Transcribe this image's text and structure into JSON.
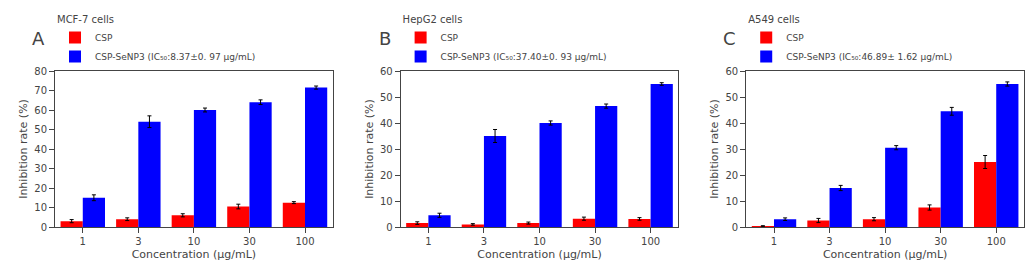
{
  "chart_data": [
    {
      "type": "bar",
      "title": "A",
      "annotations": [
        "MCF-7 cells"
      ],
      "xlabel": "Concentration (μg/mL)",
      "ylabel": "Inhibition rate (%)",
      "categories": [
        "1",
        "3",
        "10",
        "30",
        "100"
      ],
      "series": [
        {
          "name": "CSP",
          "color": "#FF0000",
          "values": [
            3.0,
            4.0,
            6.0,
            10.5,
            12.5
          ],
          "errors": [
            0.8,
            0.7,
            0.8,
            1.2,
            0.5
          ]
        },
        {
          "name": "CSP-SeNP3 (IC₅₀:8.37±0. 97 μg/mL)",
          "color": "#0000FF",
          "values": [
            15.0,
            54.0,
            60.0,
            64.0,
            71.5
          ],
          "errors": [
            1.5,
            3.0,
            1.0,
            1.2,
            0.8
          ]
        }
      ],
      "ylim": [
        0,
        80
      ],
      "yticks": [
        0,
        10,
        20,
        30,
        40,
        50,
        60,
        70,
        80
      ],
      "grid": false,
      "legend": "upper left"
    },
    {
      "type": "bar",
      "title": "B",
      "annotations": [
        "HepG2 cells"
      ],
      "xlabel": "Concentration (μg/mL)",
      "ylabel": "Inhibition rate (%)",
      "categories": [
        "1",
        "3",
        "10",
        "30",
        "100"
      ],
      "series": [
        {
          "name": "CSP",
          "color": "#FF0000",
          "values": [
            1.5,
            1.0,
            1.5,
            3.2,
            3.1
          ],
          "errors": [
            0.5,
            0.3,
            0.4,
            0.6,
            0.5
          ]
        },
        {
          "name": "CSP-SeNP3 (IC₅₀:37.40±0. 93 μg/mL)",
          "color": "#0000FF",
          "values": [
            4.5,
            35.0,
            40.0,
            46.5,
            55.0
          ],
          "errors": [
            0.8,
            2.5,
            0.8,
            0.8,
            0.5
          ]
        }
      ],
      "ylim": [
        0,
        60
      ],
      "yticks": [
        0,
        10,
        20,
        30,
        40,
        50,
        60
      ],
      "grid": false,
      "legend": "upper left"
    },
    {
      "type": "bar",
      "title": "C",
      "annotations": [
        "A549 cells"
      ],
      "xlabel": "Concentration (μg/mL)",
      "ylabel": "Inhibition rate (%)",
      "categories": [
        "1",
        "3",
        "10",
        "30",
        "100"
      ],
      "series": [
        {
          "name": "CSP",
          "color": "#FF0000",
          "values": [
            0.3,
            2.5,
            3.0,
            7.5,
            25.0
          ],
          "errors": [
            0.2,
            0.8,
            0.6,
            1.0,
            2.5
          ]
        },
        {
          "name": "CSP-SeNP3 (IC₅₀:46.89± 1.62 μg/mL)",
          "color": "#0000FF",
          "values": [
            3.0,
            15.0,
            30.5,
            44.5,
            55.0
          ],
          "errors": [
            0.5,
            1.0,
            0.8,
            1.5,
            0.8
          ]
        }
      ],
      "ylim": [
        0,
        60
      ],
      "yticks": [
        0,
        10,
        20,
        30,
        40,
        50,
        60
      ],
      "grid": false,
      "legend": "upper left"
    }
  ]
}
